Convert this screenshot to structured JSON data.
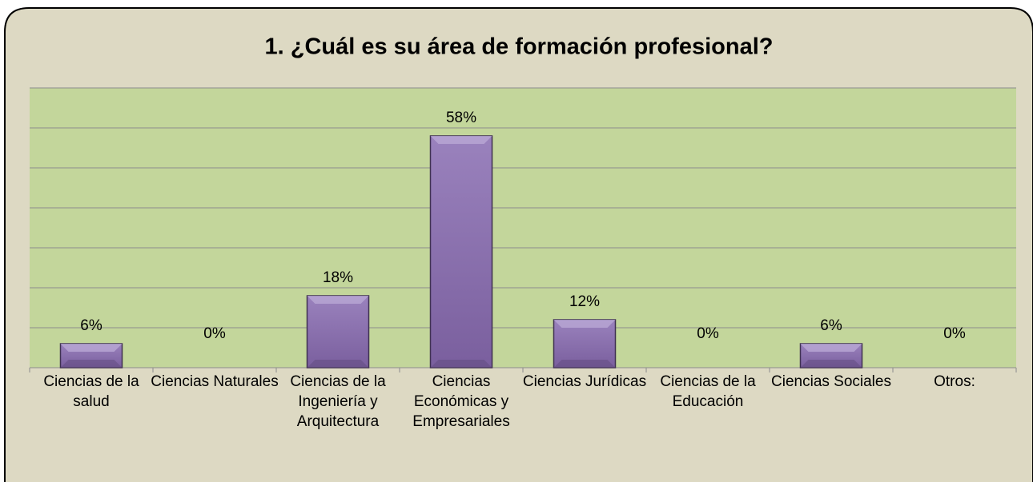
{
  "chart_data": {
    "type": "bar",
    "title": "1. ¿Cuál es su área de formación profesional?",
    "categories": [
      "Ciencias de la salud",
      "Ciencias Naturales",
      "Ciencias de la Ingeniería y Arquitectura",
      "Ciencias Económicas y Empresariales",
      "Ciencias Jurídicas",
      "Ciencias de la Educación",
      "Ciencias Sociales",
      "Otros:"
    ],
    "values": [
      6,
      0,
      18,
      58,
      12,
      0,
      6,
      0
    ],
    "value_labels": [
      "6%",
      "0%",
      "18%",
      "58%",
      "12%",
      "0%",
      "6%",
      "0%"
    ],
    "color": "#8064a2",
    "ylim": [
      0,
      70
    ],
    "yticks": [
      0,
      10,
      20,
      30,
      40,
      50,
      60,
      70
    ],
    "grid": true
  }
}
